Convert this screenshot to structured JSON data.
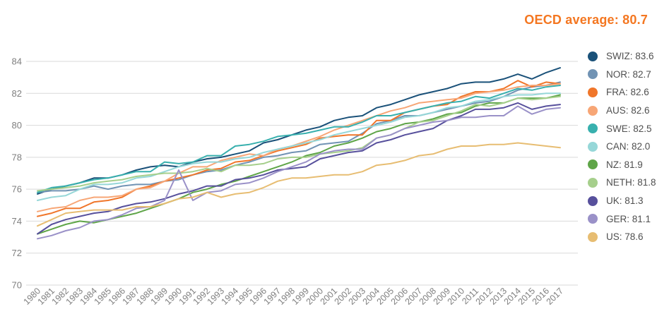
{
  "header": {
    "title": "OECD average: 80.7",
    "title_color": "#f47721"
  },
  "axes": {
    "grid_color": "#d9d9d9",
    "tick_label_color": "#7f7f7f"
  },
  "chart_data": {
    "type": "line",
    "title": "OECD average: 80.7",
    "xlabel": "",
    "ylabel": "",
    "ylim": [
      70,
      84
    ],
    "yticks": [
      70,
      72,
      74,
      76,
      78,
      80,
      82,
      84
    ],
    "grid": "horizontal",
    "legend_position": "right",
    "x": [
      1980,
      1981,
      1982,
      1983,
      1984,
      1985,
      1986,
      1987,
      1988,
      1989,
      1990,
      1991,
      1992,
      1993,
      1994,
      1995,
      1996,
      1997,
      1998,
      1999,
      2000,
      2001,
      2002,
      2003,
      2004,
      2005,
      2006,
      2007,
      2008,
      2009,
      2010,
      2011,
      2012,
      2013,
      2014,
      2015,
      2016,
      2017
    ],
    "series": [
      {
        "name": "SWIZ",
        "legend_label": "SWIZ: 83.6",
        "final_value": 83.6,
        "color": "#1a5179",
        "values": [
          75.7,
          76.0,
          76.2,
          76.4,
          76.7,
          76.7,
          76.9,
          77.2,
          77.4,
          77.5,
          77.4,
          77.7,
          77.9,
          78.0,
          78.2,
          78.4,
          78.9,
          79.1,
          79.4,
          79.7,
          79.9,
          80.3,
          80.5,
          80.6,
          81.1,
          81.3,
          81.6,
          81.9,
          82.1,
          82.3,
          82.6,
          82.7,
          82.7,
          82.9,
          83.2,
          82.9,
          83.3,
          83.6
        ]
      },
      {
        "name": "NOR",
        "legend_label": "NOR: 82.7",
        "final_value": 82.7,
        "color": "#7193b4",
        "values": [
          75.8,
          75.9,
          75.9,
          76.0,
          76.2,
          76.0,
          76.2,
          76.3,
          76.3,
          76.5,
          76.6,
          76.9,
          77.1,
          77.2,
          77.5,
          77.7,
          78.0,
          78.1,
          78.3,
          78.4,
          78.8,
          78.9,
          79.0,
          79.5,
          80.1,
          80.3,
          80.6,
          80.6,
          80.8,
          81.0,
          81.2,
          81.4,
          81.5,
          81.8,
          82.2,
          82.4,
          82.5,
          82.7
        ]
      },
      {
        "name": "FRA",
        "legend_label": "FRA: 82.6",
        "final_value": 82.6,
        "color": "#f0762a",
        "values": [
          74.3,
          74.5,
          74.8,
          74.8,
          75.2,
          75.3,
          75.5,
          76.0,
          76.2,
          76.5,
          76.7,
          76.9,
          77.2,
          77.3,
          77.7,
          77.8,
          78.1,
          78.4,
          78.6,
          78.8,
          79.2,
          79.3,
          79.4,
          79.4,
          80.3,
          80.3,
          80.8,
          81.0,
          81.2,
          81.3,
          81.8,
          82.1,
          82.1,
          82.3,
          82.8,
          82.4,
          82.7,
          82.6
        ]
      },
      {
        "name": "AUS",
        "legend_label": "AUS: 82.6",
        "final_value": 82.6,
        "color": "#f7a676",
        "values": [
          74.6,
          74.8,
          74.9,
          75.3,
          75.5,
          75.5,
          75.6,
          76.0,
          76.1,
          76.5,
          77.0,
          77.4,
          77.4,
          77.8,
          78.0,
          78.2,
          78.1,
          78.5,
          78.7,
          79.0,
          79.3,
          79.7,
          80.0,
          80.3,
          80.6,
          80.9,
          81.1,
          81.4,
          81.5,
          81.6,
          81.7,
          82.0,
          82.1,
          82.2,
          82.4,
          82.5,
          82.5,
          82.6
        ]
      },
      {
        "name": "SWE",
        "legend_label": "SWE: 82.5",
        "final_value": 82.5,
        "color": "#38b0ae",
        "values": [
          75.8,
          76.1,
          76.2,
          76.4,
          76.6,
          76.7,
          76.9,
          77.1,
          77.1,
          77.7,
          77.6,
          77.7,
          78.1,
          78.1,
          78.7,
          78.8,
          79.0,
          79.3,
          79.4,
          79.5,
          79.7,
          79.9,
          79.9,
          80.2,
          80.6,
          80.6,
          80.8,
          81.0,
          81.2,
          81.4,
          81.5,
          81.8,
          81.7,
          82.0,
          82.3,
          82.2,
          82.4,
          82.5
        ]
      },
      {
        "name": "CAN",
        "legend_label": "CAN: 82.0",
        "final_value": 82.0,
        "color": "#96d7d8",
        "values": [
          75.3,
          75.5,
          75.6,
          76.0,
          76.3,
          76.3,
          76.4,
          76.7,
          76.8,
          77.1,
          77.4,
          77.6,
          77.7,
          77.7,
          77.9,
          78.0,
          78.3,
          78.5,
          78.7,
          78.9,
          79.1,
          79.4,
          79.6,
          79.8,
          80.0,
          80.2,
          80.5,
          80.6,
          80.8,
          81.1,
          81.2,
          81.5,
          81.6,
          81.8,
          81.9,
          81.9,
          82.0,
          82.0
        ]
      },
      {
        "name": "NZ",
        "legend_label": "NZ: 81.9",
        "final_value": 81.9,
        "color": "#5fa548",
        "values": [
          73.2,
          73.5,
          73.8,
          74.0,
          73.9,
          74.1,
          74.3,
          74.5,
          74.8,
          75.1,
          75.4,
          75.8,
          76.0,
          76.3,
          76.5,
          76.8,
          77.1,
          77.4,
          77.7,
          78.1,
          78.3,
          78.7,
          78.9,
          79.2,
          79.6,
          79.8,
          80.1,
          80.2,
          80.4,
          80.7,
          80.8,
          81.2,
          81.4,
          81.4,
          81.7,
          81.7,
          81.7,
          81.9
        ]
      },
      {
        "name": "NETH",
        "legend_label": "NETH: 81.8",
        "final_value": 81.8,
        "color": "#a6cf8c",
        "values": [
          75.9,
          76.0,
          76.1,
          76.2,
          76.4,
          76.5,
          76.6,
          76.8,
          76.9,
          77.0,
          77.0,
          77.1,
          77.3,
          77.1,
          77.5,
          77.5,
          77.6,
          77.9,
          78.0,
          78.0,
          78.2,
          78.3,
          78.4,
          78.6,
          79.2,
          79.4,
          79.8,
          80.2,
          80.3,
          80.6,
          80.9,
          81.3,
          81.2,
          81.4,
          81.7,
          81.6,
          81.7,
          81.8
        ]
      },
      {
        "name": "UK",
        "legend_label": "UK: 81.3",
        "final_value": 81.3,
        "color": "#57509c",
        "values": [
          73.2,
          73.8,
          74.1,
          74.3,
          74.5,
          74.6,
          74.9,
          75.1,
          75.2,
          75.4,
          75.7,
          75.9,
          76.2,
          76.2,
          76.6,
          76.7,
          76.9,
          77.2,
          77.3,
          77.4,
          77.9,
          78.1,
          78.3,
          78.4,
          78.9,
          79.1,
          79.4,
          79.6,
          79.8,
          80.3,
          80.6,
          81.0,
          81.0,
          81.1,
          81.4,
          81.0,
          81.2,
          81.3
        ]
      },
      {
        "name": "GER",
        "legend_label": "GER: 81.1",
        "final_value": 81.1,
        "color": "#9a91c8",
        "values": [
          72.9,
          73.1,
          73.4,
          73.6,
          74.0,
          74.1,
          74.4,
          74.8,
          74.9,
          75.3,
          77.2,
          75.3,
          75.8,
          75.9,
          76.3,
          76.4,
          76.7,
          77.1,
          77.4,
          77.7,
          78.2,
          78.4,
          78.5,
          78.5,
          79.2,
          79.4,
          79.8,
          80.0,
          80.2,
          80.3,
          80.5,
          80.5,
          80.6,
          80.6,
          81.2,
          80.7,
          81.0,
          81.1
        ]
      },
      {
        "name": "US",
        "legend_label": "US: 78.6",
        "final_value": 78.6,
        "color": "#e7bd72",
        "values": [
          73.7,
          74.1,
          74.5,
          74.6,
          74.7,
          74.7,
          74.7,
          74.9,
          74.9,
          75.1,
          75.4,
          75.5,
          75.8,
          75.5,
          75.7,
          75.8,
          76.1,
          76.5,
          76.7,
          76.7,
          76.8,
          76.9,
          76.9,
          77.1,
          77.5,
          77.6,
          77.8,
          78.1,
          78.2,
          78.5,
          78.7,
          78.7,
          78.8,
          78.8,
          78.9,
          78.8,
          78.7,
          78.6
        ]
      }
    ]
  }
}
